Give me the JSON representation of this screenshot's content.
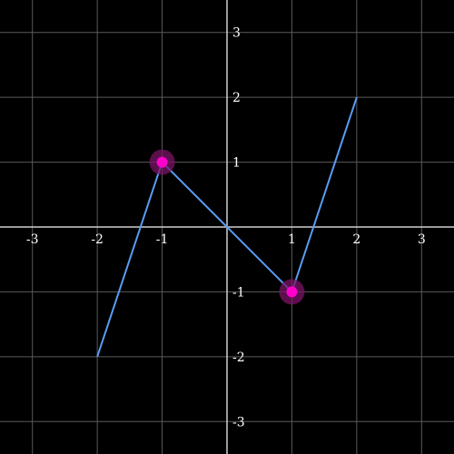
{
  "chart_data": {
    "type": "line",
    "title": "",
    "xlabel": "",
    "ylabel": "",
    "xlim": [
      -3.5,
      3.5
    ],
    "ylim": [
      -3.5,
      3.5
    ],
    "grid": true,
    "x_ticks": [
      -3,
      -2,
      -1,
      1,
      2,
      3
    ],
    "y_ticks": [
      3,
      2,
      1,
      -1,
      -2,
      -3
    ],
    "x_tick_labels": [
      "-3",
      "-2",
      "-1",
      "1",
      "2",
      "3"
    ],
    "y_tick_labels": [
      "3",
      "2",
      "1",
      "-1",
      "-2",
      "-3"
    ],
    "series": [
      {
        "x": [
          -2,
          -1,
          0,
          1,
          2
        ],
        "y": [
          -2,
          1,
          0,
          -1,
          2
        ],
        "color": "#5b9cf2"
      }
    ],
    "highlighted_points": [
      {
        "x": -1,
        "y": 1
      },
      {
        "x": 1,
        "y": -1
      }
    ],
    "colors": {
      "background": "#000000",
      "grid": "#5a5a5a",
      "axis": "#d0d0d0",
      "line": "#5b9cf2",
      "point": "#ff00cc",
      "point_glow": "#7a1466",
      "label": "#ffffff"
    }
  }
}
